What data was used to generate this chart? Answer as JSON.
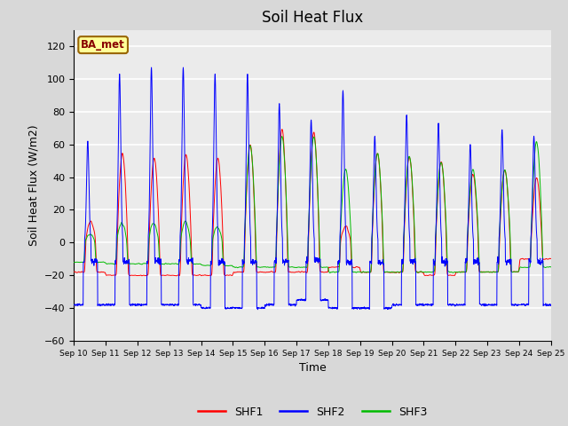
{
  "title": "Soil Heat Flux",
  "xlabel": "Time",
  "ylabel": "Soil Heat Flux (W/m2)",
  "ylim": [
    -60,
    130
  ],
  "yticks": [
    -60,
    -40,
    -20,
    0,
    20,
    40,
    60,
    80,
    100,
    120
  ],
  "xtick_labels": [
    "Sep 10",
    "Sep 11",
    "Sep 12",
    "Sep 13",
    "Sep 14",
    "Sep 15",
    "Sep 16",
    "Sep 17",
    "Sep 18",
    "Sep 19",
    "Sep 20",
    "Sep 21",
    "Sep 22",
    "Sep 23",
    "Sep 24",
    "Sep 25"
  ],
  "station_label": "BA_met",
  "station_label_facecolor": "#FFFF99",
  "station_label_edgecolor": "#996600",
  "colors": {
    "SHF1": "#FF0000",
    "SHF2": "#0000FF",
    "SHF3": "#00BB00"
  },
  "background_color": "#D8D8D8",
  "plot_bg_color": "#EBEBEB",
  "grid_color": "#FFFFFF",
  "title_fontsize": 12,
  "axis_label_fontsize": 9,
  "tick_fontsize": 8
}
